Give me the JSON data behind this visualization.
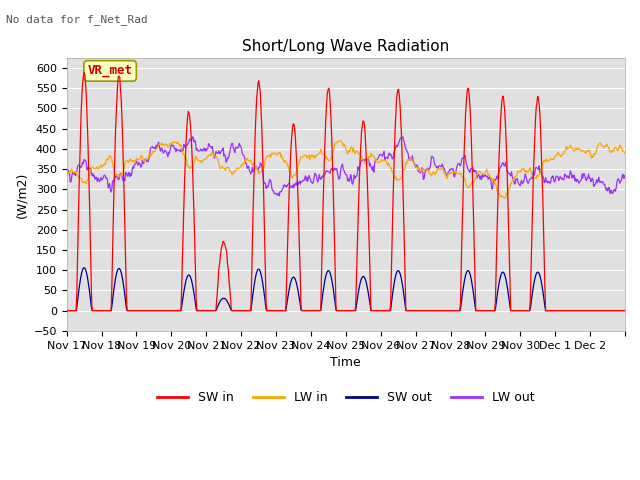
{
  "title": "Short/Long Wave Radiation",
  "subtitle": "No data for f_Net_Rad",
  "xlabel": "Time",
  "ylabel": "(W/m2)",
  "ylim": [
    -50,
    625
  ],
  "yticks": [
    -50,
    0,
    50,
    100,
    150,
    200,
    250,
    300,
    350,
    400,
    450,
    500,
    550,
    600
  ],
  "annotation_label": "VR_met",
  "colors": {
    "SW_in": "#ff0000",
    "LW_in": "#ffa500",
    "SW_out": "#00008b",
    "LW_out": "#9b30ff"
  },
  "legend_labels": [
    "SW in",
    "LW in",
    "SW out",
    "LW out"
  ],
  "x_tick_labels": [
    "Nov 17",
    "Nov 18",
    "Nov 19",
    "Nov 20",
    "Nov 21",
    "Nov 22",
    "Nov 23",
    "Nov 24",
    "Nov 25",
    "Nov 26",
    "Nov 27",
    "Nov 28",
    "Nov 29",
    "Nov 30",
    "Dec 1",
    "Dec 2"
  ],
  "n_days": 16,
  "n_points_per_day": 48,
  "day_peak_heights_SW": [
    590,
    580,
    0,
    490,
    170,
    570,
    460,
    550,
    470,
    550,
    0,
    550,
    530,
    530,
    0,
    0
  ],
  "facecolor": "#e0e0e0"
}
